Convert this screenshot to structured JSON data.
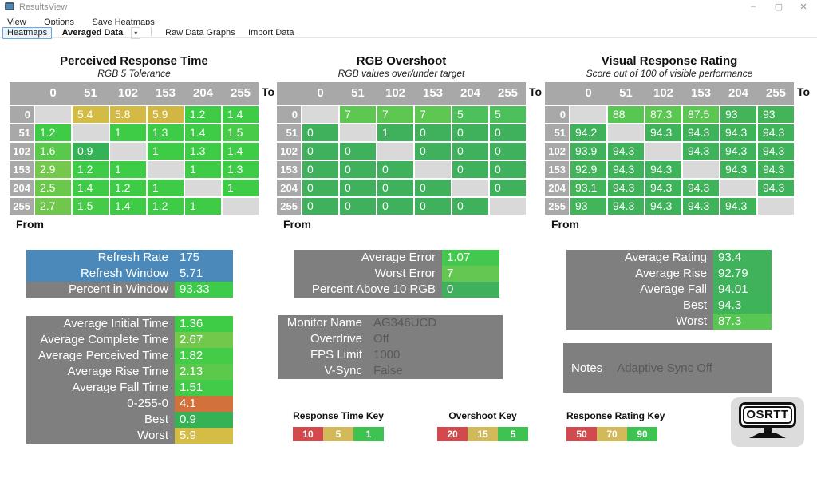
{
  "window": {
    "title": "ResultsView",
    "controls": {
      "minimize": "–",
      "maximize": "▢",
      "close": "✕"
    }
  },
  "menu": {
    "items": [
      "View",
      "Options",
      "Save Heatmaps"
    ]
  },
  "toolbar": {
    "heatmaps_button": "Heatmaps",
    "dataset_selector": "Averaged Data",
    "dropdown_arrow": "▾",
    "raw_data_graphs": "Raw Data Graphs",
    "import_data": "Import Data"
  },
  "labels": {
    "to": "To",
    "from": "From"
  },
  "levels": [
    "0",
    "51",
    "102",
    "153",
    "204",
    "255"
  ],
  "heatmaps": [
    {
      "type": "heatmap",
      "title": "Perceived Response Time",
      "subtitle": "RGB 5 Tolerance",
      "rows": [
        {
          "from": "0",
          "cells": [
            null,
            {
              "v": "5.4",
              "c": "#d2bc45"
            },
            {
              "v": "5.8",
              "c": "#d2ba44"
            },
            {
              "v": "5.9",
              "c": "#d1b644"
            },
            {
              "v": "1.2",
              "c": "#3ecc47"
            },
            {
              "v": "1.4",
              "c": "#3ecc47"
            }
          ]
        },
        {
          "from": "51",
          "cells": [
            {
              "v": "1.2",
              "c": "#3ecc47"
            },
            null,
            {
              "v": "1",
              "c": "#3ecc47"
            },
            {
              "v": "1.3",
              "c": "#3ecc47"
            },
            {
              "v": "1.4",
              "c": "#3ecc47"
            },
            {
              "v": "1.5",
              "c": "#48cb49"
            }
          ]
        },
        {
          "from": "102",
          "cells": [
            {
              "v": "1.6",
              "c": "#58c94a"
            },
            {
              "v": "0.9",
              "c": "#35b256"
            },
            null,
            {
              "v": "1",
              "c": "#3ecc47"
            },
            {
              "v": "1.3",
              "c": "#3ecc47"
            },
            {
              "v": "1.4",
              "c": "#3ecc47"
            }
          ]
        },
        {
          "from": "153",
          "cells": [
            {
              "v": "2.9",
              "c": "#74c84b"
            },
            {
              "v": "1.2",
              "c": "#3ecc47"
            },
            {
              "v": "1",
              "c": "#3ecc47"
            },
            null,
            {
              "v": "1",
              "c": "#3ecc47"
            },
            {
              "v": "1.3",
              "c": "#3ecc47"
            }
          ]
        },
        {
          "from": "204",
          "cells": [
            {
              "v": "2.5",
              "c": "#6ac84b"
            },
            {
              "v": "1.4",
              "c": "#3ecc47"
            },
            {
              "v": "1.2",
              "c": "#3ecc47"
            },
            {
              "v": "1",
              "c": "#3ecc47"
            },
            null,
            {
              "v": "1",
              "c": "#3ecc47"
            }
          ]
        },
        {
          "from": "255",
          "cells": [
            {
              "v": "2.7",
              "c": "#6fc84b"
            },
            {
              "v": "1.5",
              "c": "#46cb48"
            },
            {
              "v": "1.4",
              "c": "#3ecc47"
            },
            {
              "v": "1.2",
              "c": "#3ecc47"
            },
            {
              "v": "1",
              "c": "#3ecc47"
            },
            null
          ]
        }
      ]
    },
    {
      "type": "heatmap",
      "title": "RGB Overshoot",
      "subtitle": "RGB values over/under target",
      "rows": [
        {
          "from": "0",
          "cells": [
            null,
            {
              "v": "7",
              "c": "#5dc751"
            },
            {
              "v": "7",
              "c": "#5dc751"
            },
            {
              "v": "7",
              "c": "#5dc751"
            },
            {
              "v": "5",
              "c": "#4cc05a"
            },
            {
              "v": "5",
              "c": "#4cc05a"
            }
          ]
        },
        {
          "from": "51",
          "cells": [
            {
              "v": "0",
              "c": "#3fb05c"
            },
            null,
            {
              "v": "1",
              "c": "#3fb05c"
            },
            {
              "v": "0",
              "c": "#3fb05c"
            },
            {
              "v": "0",
              "c": "#3fb05c"
            },
            {
              "v": "0",
              "c": "#3fb05c"
            }
          ]
        },
        {
          "from": "102",
          "cells": [
            {
              "v": "0",
              "c": "#3fb05c"
            },
            {
              "v": "0",
              "c": "#3fb05c"
            },
            null,
            {
              "v": "0",
              "c": "#3fb05c"
            },
            {
              "v": "0",
              "c": "#3fb05c"
            },
            {
              "v": "0",
              "c": "#3fb05c"
            }
          ]
        },
        {
          "from": "153",
          "cells": [
            {
              "v": "0",
              "c": "#3fb05c"
            },
            {
              "v": "0",
              "c": "#3fb05c"
            },
            {
              "v": "0",
              "c": "#3fb05c"
            },
            null,
            {
              "v": "0",
              "c": "#3fb05c"
            },
            {
              "v": "0",
              "c": "#3fb05c"
            }
          ]
        },
        {
          "from": "204",
          "cells": [
            {
              "v": "0",
              "c": "#3fb05c"
            },
            {
              "v": "0",
              "c": "#3fb05c"
            },
            {
              "v": "0",
              "c": "#3fb05c"
            },
            {
              "v": "0",
              "c": "#3fb05c"
            },
            null,
            {
              "v": "0",
              "c": "#3fb05c"
            }
          ]
        },
        {
          "from": "255",
          "cells": [
            {
              "v": "0",
              "c": "#3fb05c"
            },
            {
              "v": "0",
              "c": "#3fb05c"
            },
            {
              "v": "0",
              "c": "#3fb05c"
            },
            {
              "v": "0",
              "c": "#3fb05c"
            },
            {
              "v": "0",
              "c": "#3fb05c"
            },
            null
          ]
        }
      ]
    },
    {
      "type": "heatmap",
      "title": "Visual Response Rating",
      "subtitle": "Score out of 100 of visible performance",
      "rows": [
        {
          "from": "0",
          "cells": [
            null,
            {
              "v": "88",
              "c": "#58c653"
            },
            {
              "v": "87.3",
              "c": "#5cc653"
            },
            {
              "v": "87.5",
              "c": "#5cc653"
            },
            {
              "v": "93",
              "c": "#43b45a"
            },
            {
              "v": "93",
              "c": "#43b45a"
            }
          ]
        },
        {
          "from": "51",
          "cells": [
            {
              "v": "94.2",
              "c": "#3fb25b"
            },
            null,
            {
              "v": "94.3",
              "c": "#3eb35a"
            },
            {
              "v": "94.3",
              "c": "#3eb35a"
            },
            {
              "v": "94.3",
              "c": "#3eb35a"
            },
            {
              "v": "94.3",
              "c": "#3eb35a"
            }
          ]
        },
        {
          "from": "102",
          "cells": [
            {
              "v": "93.9",
              "c": "#3fb25b"
            },
            {
              "v": "94.3",
              "c": "#3eb35a"
            },
            null,
            {
              "v": "94.3",
              "c": "#3eb35a"
            },
            {
              "v": "94.3",
              "c": "#3eb35a"
            },
            {
              "v": "94.3",
              "c": "#3eb35a"
            }
          ]
        },
        {
          "from": "153",
          "cells": [
            {
              "v": "92.9",
              "c": "#44b45a"
            },
            {
              "v": "94.3",
              "c": "#3eb35a"
            },
            {
              "v": "94.3",
              "c": "#3eb35a"
            },
            null,
            {
              "v": "94.3",
              "c": "#3eb35a"
            },
            {
              "v": "94.3",
              "c": "#3eb35a"
            }
          ]
        },
        {
          "from": "204",
          "cells": [
            {
              "v": "93.1",
              "c": "#42b45a"
            },
            {
              "v": "94.3",
              "c": "#3eb35a"
            },
            {
              "v": "94.3",
              "c": "#3eb35a"
            },
            {
              "v": "94.3",
              "c": "#3eb35a"
            },
            null,
            {
              "v": "94.3",
              "c": "#3eb35a"
            }
          ]
        },
        {
          "from": "255",
          "cells": [
            {
              "v": "93",
              "c": "#42b45a"
            },
            {
              "v": "94.3",
              "c": "#3eb35a"
            },
            {
              "v": "94.3",
              "c": "#3eb35a"
            },
            {
              "v": "94.3",
              "c": "#3eb35a"
            },
            {
              "v": "94.3",
              "c": "#3eb35a"
            },
            null
          ]
        }
      ]
    }
  ],
  "summary_boxes": {
    "refresh": {
      "rows": [
        {
          "label": "Refresh Rate",
          "value": "175",
          "labelBg": "#4a89ba",
          "valueBg": "#4a89ba"
        },
        {
          "label": "Refresh Window",
          "value": "5.71",
          "labelBg": "#4a89ba",
          "valueBg": "#4a89ba"
        },
        {
          "label": "Percent in Window",
          "value": "93.33",
          "labelBg": "#7f7f7f",
          "valueBg": "#3dcb4a"
        }
      ]
    },
    "response_times": {
      "rows": [
        {
          "label": "Average Initial Time",
          "value": "1.36",
          "valueBg": "#3ecc47"
        },
        {
          "label": "Average Complete Time",
          "value": "2.67",
          "valueBg": "#72c84b"
        },
        {
          "label": "Average Perceived Time",
          "value": "1.82",
          "valueBg": "#44cb48"
        },
        {
          "label": "Average Rise Time",
          "value": "2.13",
          "valueBg": "#5bc94b"
        },
        {
          "label": "Average Fall Time",
          "value": "1.51",
          "valueBg": "#42cb48"
        },
        {
          "label": "0-255-0",
          "value": "4.1",
          "valueBg": "#d2713c"
        },
        {
          "label": "Best",
          "value": "0.9",
          "valueBg": "#35b256"
        },
        {
          "label": "Worst",
          "value": "5.9",
          "valueBg": "#d3bd45"
        }
      ]
    },
    "error": {
      "rows": [
        {
          "label": "Average Error",
          "value": "1.07",
          "valueBg": "#44c74e"
        },
        {
          "label": "Worst Error",
          "value": "7",
          "valueBg": "#63c751"
        },
        {
          "label": "Percent Above 10 RGB",
          "value": "0",
          "valueBg": "#3fb05c"
        }
      ]
    },
    "monitor": {
      "rows": [
        {
          "label": "Monitor Name",
          "value": "AG346UCD",
          "valueColor": "#595959"
        },
        {
          "label": "Overdrive",
          "value": "Off",
          "valueColor": "#595959"
        },
        {
          "label": "FPS Limit",
          "value": "1000",
          "valueColor": "#595959"
        },
        {
          "label": "V-Sync",
          "value": "False",
          "valueColor": "#595959"
        }
      ]
    },
    "rating": {
      "rows": [
        {
          "label": "Average Rating",
          "value": "93.4",
          "valueBg": "#3fb25b"
        },
        {
          "label": "Average Rise",
          "value": "92.79",
          "valueBg": "#3fb25b"
        },
        {
          "label": "Average Fall",
          "value": "94.01",
          "valueBg": "#3fb25b"
        },
        {
          "label": "Best",
          "value": "94.3",
          "valueBg": "#3eb35a"
        },
        {
          "label": "Worst",
          "value": "87.3",
          "valueBg": "#58c653"
        }
      ]
    },
    "notes": {
      "label": "Notes",
      "value": "Adaptive Sync Off"
    }
  },
  "keys": [
    {
      "title": "Response Time Key",
      "segments": [
        {
          "label": "10",
          "c": "#d34a4e"
        },
        {
          "label": "5",
          "c": "#d2ba5a"
        },
        {
          "label": "1",
          "c": "#3ec353"
        }
      ]
    },
    {
      "title": "Overshoot Key",
      "segments": [
        {
          "label": "20",
          "c": "#d34a4e"
        },
        {
          "label": "15",
          "c": "#d2ba5a"
        },
        {
          "label": "5",
          "c": "#3ec353"
        }
      ]
    },
    {
      "title": "Response Rating Key",
      "segments": [
        {
          "label": "50",
          "c": "#d34a4e"
        },
        {
          "label": "70",
          "c": "#d2ba5a"
        },
        {
          "label": "90",
          "c": "#3ec353"
        }
      ]
    }
  ],
  "logo": {
    "text": "OSRTT"
  }
}
